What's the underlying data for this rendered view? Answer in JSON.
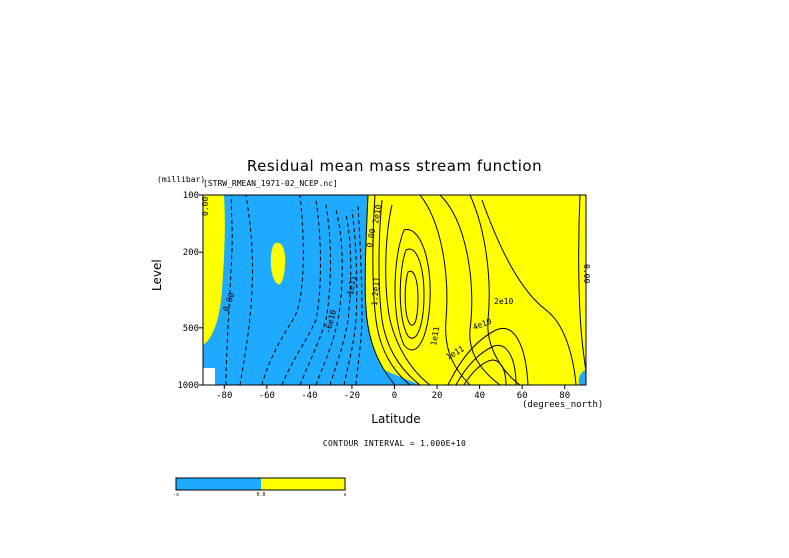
{
  "chart_data": {
    "type": "contour",
    "title": "Residual mean mass stream function",
    "subtitle": "[STRW_RMEAN_1971-02_NCEP.nc]",
    "xlabel": "Latitude",
    "x_units": "(degrees_north)",
    "ylabel": "Level",
    "y_units": "(millibar)",
    "xlim": [
      -90,
      90
    ],
    "ylim": [
      1000,
      100
    ],
    "y_scale": "log",
    "x_ticks": [
      "-80",
      "-60",
      "-40",
      "-20",
      "0",
      "20",
      "40",
      "60",
      "80"
    ],
    "x_tick_values": [
      -80,
      -60,
      -40,
      -20,
      0,
      20,
      40,
      60,
      80
    ],
    "y_ticks": [
      "100",
      "200",
      "500",
      "1000"
    ],
    "y_tick_values": [
      100,
      200,
      500,
      1000
    ],
    "contour_interval_text": "CONTOUR INTERVAL = 1.000E+10",
    "contour_labels": [
      "0.00",
      "0.00",
      "-6e10",
      "-1e11",
      "2e10",
      "0.00",
      "1.2e11",
      "1e11",
      "2e10",
      "4e10",
      "1e11",
      "0.00"
    ],
    "fill_colors": {
      "negative": "#1eaaff",
      "positive": "#ffff00"
    },
    "colorbar": {
      "ticks": [
        "-s",
        "0.0",
        "s"
      ],
      "colors": [
        "#1eaaff",
        "#ffff00"
      ]
    }
  }
}
